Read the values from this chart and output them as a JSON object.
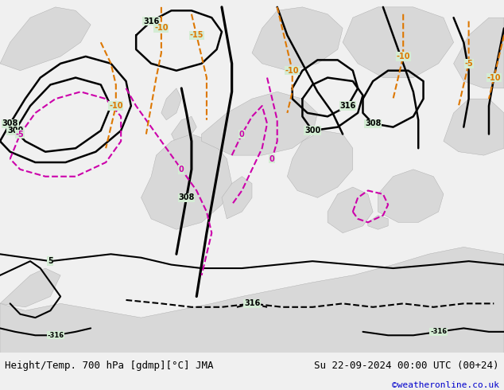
{
  "title_left": "Height/Temp. 700 hPa [gdmp][°C] JMA",
  "title_right": "Su 22-09-2024 00:00 UTC (00+24)",
  "watermark": "©weatheronline.co.uk",
  "bg_color": "#d4ecd4",
  "land_color": "#d8d8d8",
  "sea_color": "#d4ecd4",
  "bottom_bar_color": "#f0f0f0",
  "text_color_left": "#000000",
  "text_color_right": "#000000",
  "watermark_color": "#0000cc",
  "font_size_title": 9,
  "font_size_watermark": 8,
  "black_lw": 1.8,
  "pink_lw": 1.5,
  "orange_lw": 1.5,
  "label_fontsize": 7
}
